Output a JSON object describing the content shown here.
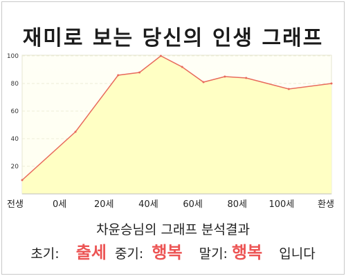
{
  "chart_data": {
    "type": "area",
    "title": "재미로 보는 당신의 인생 그래프",
    "x_tick_labels": [
      "전생",
      "0세",
      "20세",
      "40세",
      "60세",
      "80세",
      "100세",
      "환생"
    ],
    "y_ticks": [
      20,
      40,
      60,
      80,
      100
    ],
    "ylim": [
      0,
      100
    ],
    "grid": true,
    "series": [
      {
        "x": [
          -25,
          0,
          20,
          30,
          40,
          50,
          60,
          70,
          80,
          100,
          120
        ],
        "values": [
          10,
          45,
          86,
          88,
          100,
          92,
          81,
          85,
          84,
          76,
          80
        ]
      }
    ],
    "colors": {
      "line": "#e86a5c",
      "fill": "#ffffc4",
      "plot_bg": "#fffff0"
    }
  },
  "summary": {
    "heading": "차윤승님의 그래프 분석결과",
    "early_label": "초기:",
    "early_value": "출세",
    "mid_label": "중기:",
    "mid_value": "행복",
    "late_label": "말기:",
    "late_value": "행복",
    "ending": "입니다"
  }
}
